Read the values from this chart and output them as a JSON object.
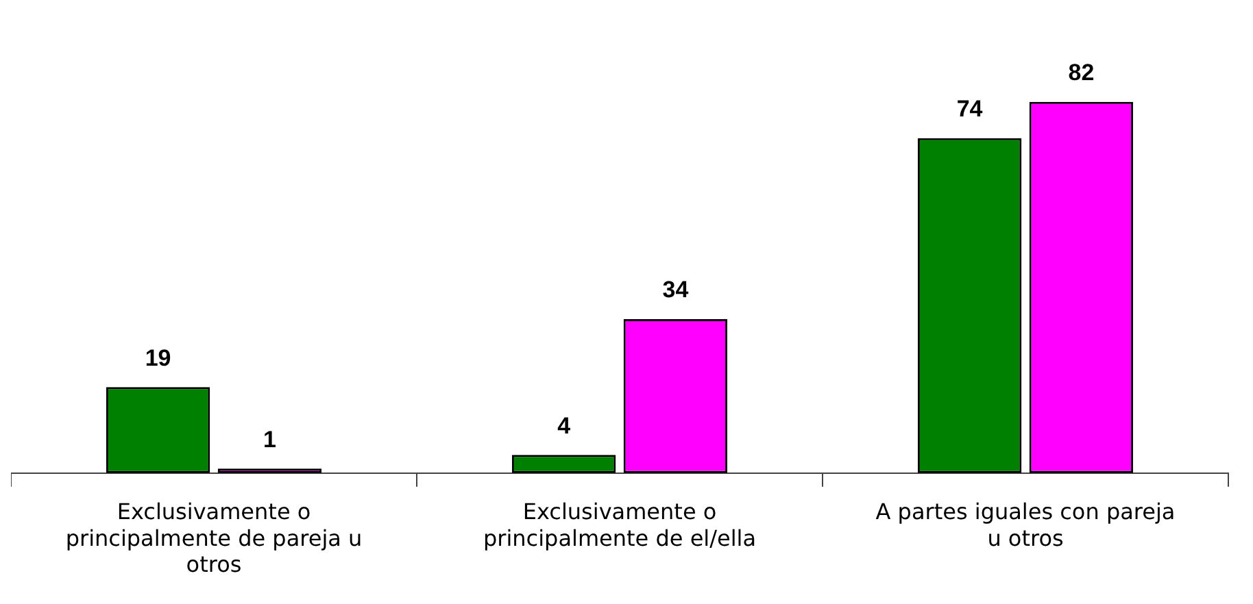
{
  "chart_data": {
    "type": "bar",
    "categories": [
      "Exclusivamente o principalmente de pareja u otros",
      "Exclusivamente o principalmente de el/ella",
      "A partes iguales con pareja u otros"
    ],
    "series": [
      {
        "color": "#008000",
        "values": [
          19,
          4,
          74
        ]
      },
      {
        "color": "#ff00ff",
        "values": [
          1,
          34,
          82
        ]
      }
    ],
    "data_labels": true,
    "legend": false
  }
}
